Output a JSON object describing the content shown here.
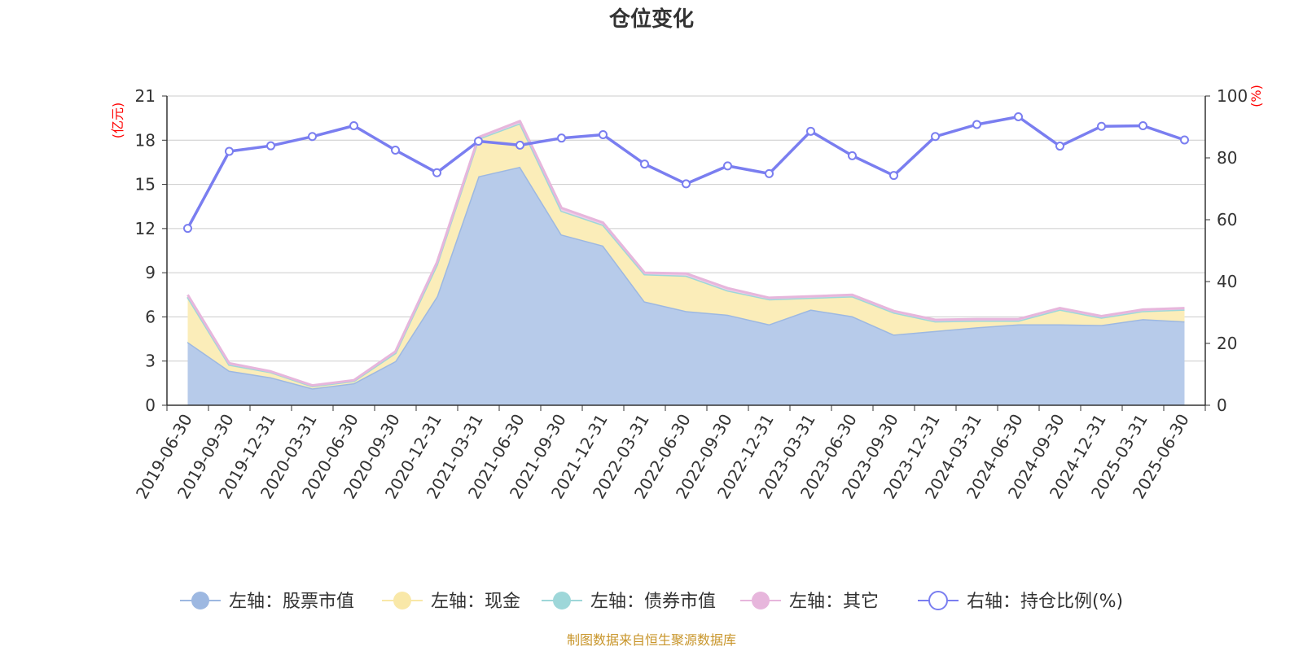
{
  "chart_data": {
    "type": "area",
    "title": "仓位变化",
    "left_unit": "(亿元)",
    "right_unit": "(%)",
    "y_left_ticks": [
      "0",
      "3",
      "6",
      "9",
      "12",
      "15",
      "18",
      "21"
    ],
    "y_right_ticks": [
      "0",
      "20",
      "40",
      "60",
      "80",
      "100"
    ],
    "y_left_range": [
      0,
      21
    ],
    "y_right_range": [
      0,
      100
    ],
    "grid": true,
    "legend_position": "bottom",
    "categories": [
      "2019-06-30",
      "2019-09-30",
      "2019-12-31",
      "2020-03-31",
      "2020-06-30",
      "2020-09-30",
      "2020-12-31",
      "2021-03-31",
      "2021-06-30",
      "2021-09-30",
      "2021-12-31",
      "2022-03-31",
      "2022-06-30",
      "2022-09-30",
      "2022-12-31",
      "2023-03-31",
      "2023-06-30",
      "2023-09-30",
      "2023-12-31",
      "2024-03-31",
      "2024-06-30",
      "2024-09-30",
      "2024-12-31",
      "2025-03-31",
      "2025-06-30"
    ],
    "series": [
      {
        "name": "左轴：股票市值",
        "axis": "left",
        "color": "#9db8e1",
        "fill": "#b7cbea",
        "values": [
          4.3,
          2.35,
          1.9,
          1.15,
          1.5,
          3.0,
          7.4,
          15.55,
          16.2,
          11.6,
          10.85,
          7.05,
          6.4,
          6.15,
          5.5,
          6.5,
          6.05,
          4.8,
          5.05,
          5.3,
          5.5,
          5.5,
          5.45,
          5.85,
          5.7
        ]
      },
      {
        "name": "左轴：现金",
        "axis": "left",
        "color": "#f9e8a8",
        "fill": "#fbedb9",
        "values": [
          3.05,
          0.4,
          0.35,
          0.15,
          0.15,
          0.55,
          2.15,
          2.55,
          2.95,
          1.6,
          1.4,
          1.85,
          2.4,
          1.65,
          1.7,
          0.8,
          1.35,
          1.5,
          0.65,
          0.45,
          0.25,
          1.0,
          0.5,
          0.55,
          0.8
        ]
      },
      {
        "name": "左轴：债券市值",
        "axis": "left",
        "color": "#9ed7d9",
        "fill": "#b8e2e3",
        "values": [
          0,
          0,
          0,
          0,
          0,
          0,
          0,
          0,
          0,
          0,
          0,
          0,
          0,
          0,
          0,
          0,
          0,
          0,
          0,
          0,
          0,
          0,
          0,
          0,
          0
        ]
      },
      {
        "name": "左轴：其它",
        "axis": "left",
        "color": "#e7b6dc",
        "fill": "#efcde8",
        "values": [
          0.15,
          0.1,
          0.05,
          0.05,
          0.05,
          0.1,
          0.15,
          0.1,
          0.15,
          0.2,
          0.15,
          0.1,
          0.15,
          0.15,
          0.1,
          0.1,
          0.1,
          0.1,
          0.1,
          0.1,
          0.1,
          0.1,
          0.1,
          0.1,
          0.1
        ]
      },
      {
        "name": "右轴：持仓比例(%)",
        "axis": "right",
        "color": "#7a7ef0",
        "values": [
          57.2,
          82.1,
          83.9,
          86.9,
          90.4,
          82.5,
          75.2,
          85.4,
          84.1,
          86.4,
          87.5,
          78.0,
          71.6,
          77.4,
          74.9,
          88.6,
          80.7,
          74.3,
          86.9,
          90.8,
          93.3,
          83.8,
          90.2,
          90.4,
          85.8
        ]
      }
    ],
    "source": "制图数据来自恒生聚源数据库"
  }
}
